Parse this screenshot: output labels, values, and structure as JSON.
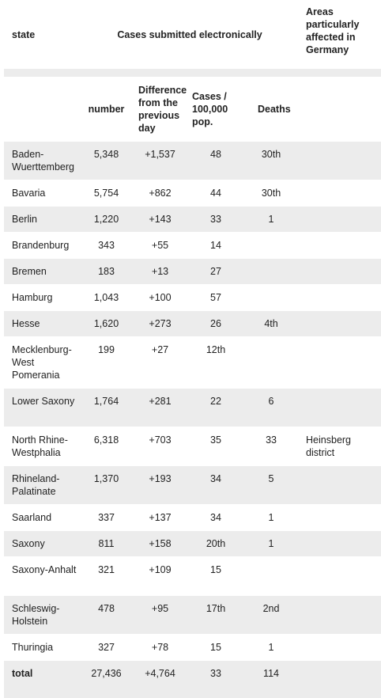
{
  "header": {
    "state": "state",
    "cases_electronic": "Cases submitted electronically",
    "areas": "Areas particularly affected in Germany",
    "number": "number",
    "difference": "Difference from the previous day",
    "cases_per_100k": "Cases / 100,000 pop.",
    "deaths": "Deaths"
  },
  "rows": [
    {
      "state": "Baden-Wuerttemberg",
      "number": "5,348",
      "diff": "+1,537",
      "per100k": "48",
      "deaths": "30th",
      "area": ""
    },
    {
      "state": "Bavaria",
      "number": "5,754",
      "diff": "+862",
      "per100k": "44",
      "deaths": "30th",
      "area": ""
    },
    {
      "state": "Berlin",
      "number": "1,220",
      "diff": "+143",
      "per100k": "33",
      "deaths": "1",
      "area": ""
    },
    {
      "state": "Brandenburg",
      "number": "343",
      "diff": "+55",
      "per100k": "14",
      "deaths": "",
      "area": ""
    },
    {
      "state": "Bremen",
      "number": "183",
      "diff": "+13",
      "per100k": "27",
      "deaths": "",
      "area": ""
    },
    {
      "state": "Hamburg",
      "number": "1,043",
      "diff": "+100",
      "per100k": "57",
      "deaths": "",
      "area": ""
    },
    {
      "state": "Hesse",
      "number": "1,620",
      "diff": "+273",
      "per100k": "26",
      "deaths": "4th",
      "area": ""
    },
    {
      "state": "Mecklenburg-West Pomerania",
      "number": "199",
      "diff": "+27",
      "per100k": "12th",
      "deaths": "",
      "area": ""
    },
    {
      "state": "Lower Saxony",
      "number": "1,764",
      "diff": "+281",
      "per100k": "22",
      "deaths": "6",
      "area": ""
    },
    {
      "state": "North Rhine-Westphalia",
      "number": "6,318",
      "diff": "+703",
      "per100k": "35",
      "deaths": "33",
      "area": "Heinsberg district"
    },
    {
      "state": "Rhineland-Palatinate",
      "number": "1,370",
      "diff": "+193",
      "per100k": "34",
      "deaths": "5",
      "area": ""
    },
    {
      "state": "Saarland",
      "number": "337",
      "diff": "+137",
      "per100k": "34",
      "deaths": "1",
      "area": ""
    },
    {
      "state": "Saxony",
      "number": "811",
      "diff": "+158",
      "per100k": "20th",
      "deaths": "1",
      "area": ""
    },
    {
      "state": "Saxony-Anhalt",
      "number": "321",
      "diff": "+109",
      "per100k": "15",
      "deaths": "",
      "area": ""
    },
    {
      "state": "Schleswig-Holstein",
      "number": "478",
      "diff": "+95",
      "per100k": "17th",
      "deaths": "2nd",
      "area": ""
    },
    {
      "state": "Thuringia",
      "number": "327",
      "diff": "+78",
      "per100k": "15",
      "deaths": "1",
      "area": ""
    }
  ],
  "total": {
    "state": "total",
    "number": "27,436",
    "diff": "+4,764",
    "per100k": "33",
    "deaths": "114"
  }
}
